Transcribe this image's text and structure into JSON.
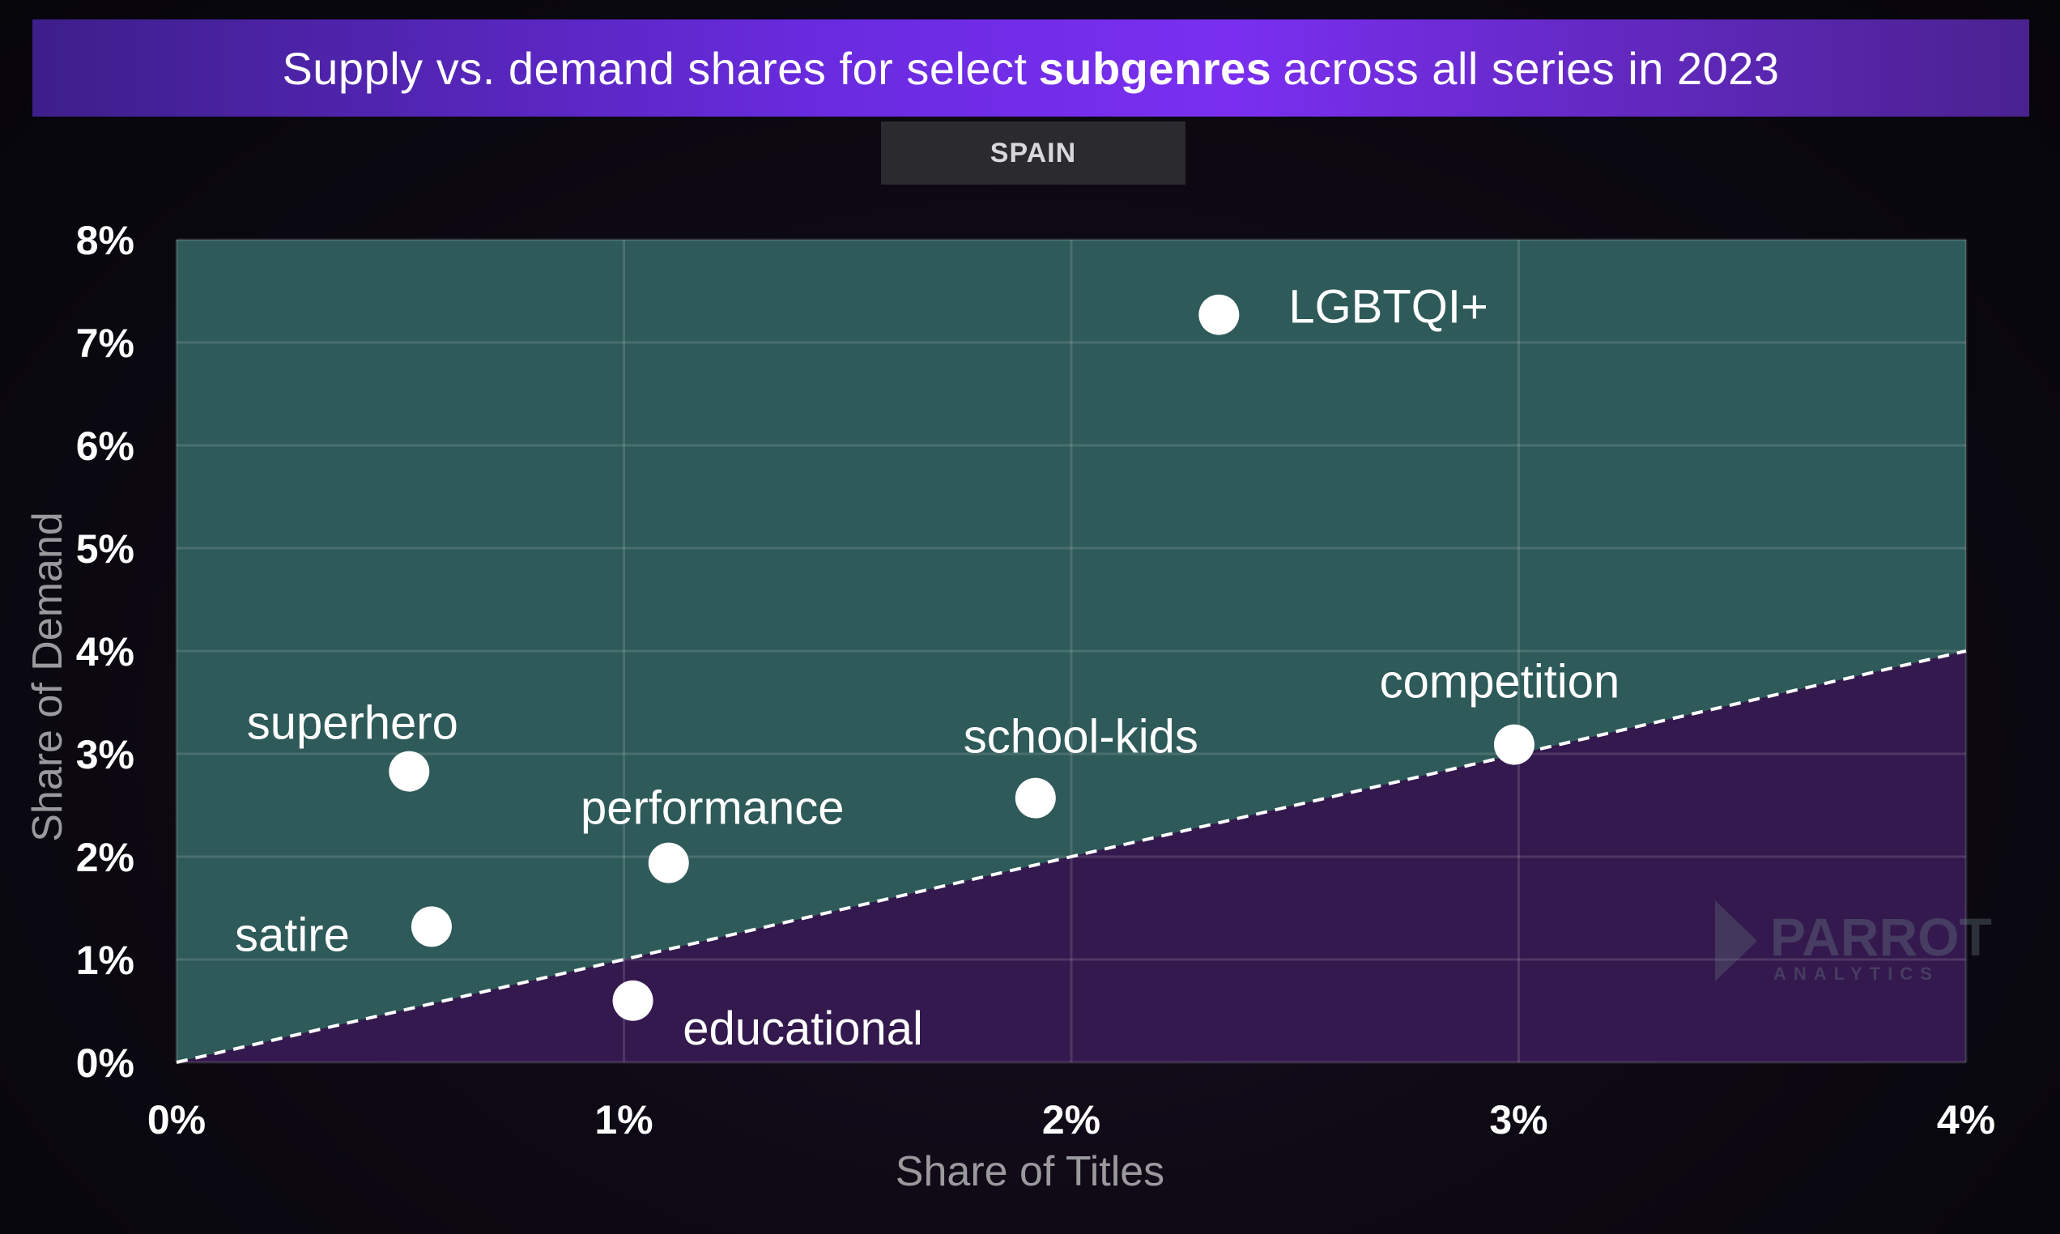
{
  "header": {
    "title_pre": "Supply vs. demand shares for select",
    "title_bold": "subgenres",
    "title_post": "across all series in 2023",
    "region": "SPAIN"
  },
  "watermark": {
    "brand": "PARROT",
    "sub": "ANALYTICS"
  },
  "colors": {
    "above_region": "#2e5a59",
    "below_region": "#33194d",
    "points": "#ffffff",
    "title_accent": "#7a2ff0"
  },
  "chart_data": {
    "type": "scatter",
    "xlabel": "Share of Titles",
    "ylabel": "Share of Demand",
    "xlim": [
      0,
      4
    ],
    "ylim": [
      0,
      8
    ],
    "x_ticks": [
      0,
      1,
      2,
      3,
      4
    ],
    "y_ticks": [
      0,
      1,
      2,
      3,
      4,
      5,
      6,
      7,
      8
    ],
    "x_tick_labels": [
      "0%",
      "1%",
      "2%",
      "3%",
      "4%"
    ],
    "y_tick_labels": [
      "0%",
      "1%",
      "2%",
      "3%",
      "4%",
      "5%",
      "6%",
      "7%",
      "8%"
    ],
    "reference_line": {
      "style": "dashed",
      "from": [
        0,
        0
      ],
      "to": [
        4,
        4
      ]
    },
    "grid": true,
    "points": [
      {
        "label": "LGBTQI+",
        "x": 2.33,
        "y": 7.27
      },
      {
        "label": "competition",
        "x": 2.99,
        "y": 3.09
      },
      {
        "label": "superhero",
        "x": 0.52,
        "y": 2.83
      },
      {
        "label": "school-kids",
        "x": 1.92,
        "y": 2.57
      },
      {
        "label": "performance",
        "x": 1.1,
        "y": 1.94
      },
      {
        "label": "satire",
        "x": 0.57,
        "y": 1.32
      },
      {
        "label": "educational",
        "x": 1.02,
        "y": 0.6
      }
    ]
  }
}
